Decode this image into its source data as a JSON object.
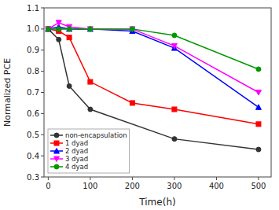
{
  "chart_data": {
    "type": "line",
    "xlabel": "Time(h)",
    "ylabel": "Normalized PCE",
    "series": [
      {
        "name": "non-encapsulation",
        "color": "#333333",
        "marker": "circle",
        "x": [
          0,
          25,
          50,
          100,
          300,
          500
        ],
        "values": [
          1.0,
          0.95,
          0.73,
          0.62,
          0.48,
          0.43
        ]
      },
      {
        "name": "1 dyad",
        "color": "#ff0000",
        "marker": "square",
        "x": [
          0,
          25,
          50,
          100,
          200,
          300,
          500
        ],
        "values": [
          1.0,
          0.99,
          0.96,
          0.75,
          0.65,
          0.62,
          0.55
        ]
      },
      {
        "name": "2 dyad",
        "color": "#0000ff",
        "marker": "triangle-up",
        "x": [
          0,
          25,
          50,
          100,
          200,
          300,
          500
        ],
        "values": [
          1.0,
          1.01,
          1.0,
          1.0,
          0.99,
          0.91,
          0.63
        ]
      },
      {
        "name": "3 dyad",
        "color": "#ff00ff",
        "marker": "triangle-down",
        "x": [
          0,
          25,
          50,
          100,
          200,
          300,
          500
        ],
        "values": [
          1.0,
          1.03,
          1.01,
          1.0,
          1.0,
          0.92,
          0.7
        ]
      },
      {
        "name": "4 dyad",
        "color": "#009900",
        "marker": "circle",
        "x": [
          0,
          25,
          50,
          100,
          200,
          300,
          500
        ],
        "values": [
          1.0,
          1.0,
          1.0,
          1.0,
          1.0,
          0.97,
          0.81
        ]
      }
    ],
    "xlim": [
      -10,
      530
    ],
    "ylim": [
      0.3,
      1.1
    ],
    "xticks": [
      0,
      100,
      200,
      300,
      400,
      500
    ],
    "yticks": [
      0.3,
      0.4,
      0.5,
      0.6,
      0.7,
      0.8,
      0.9,
      {
        "value": 1.0,
        "label": "1.0"
      },
      1.1
    ],
    "legend": "lower left"
  }
}
